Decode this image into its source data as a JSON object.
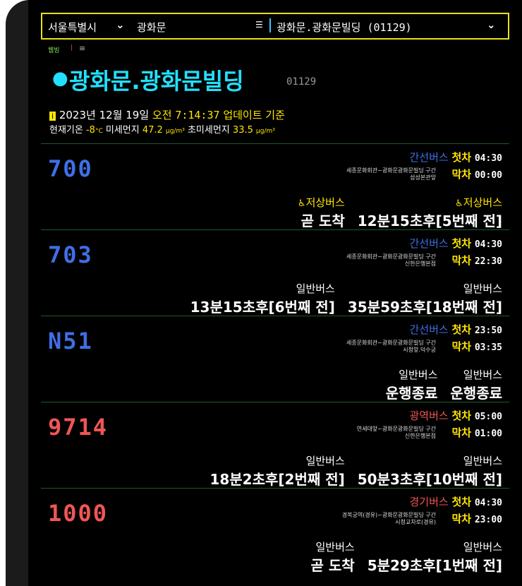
{
  "header": {
    "city": "서울특별시",
    "district": "광화문",
    "stop_select": "광화문.광화문빌딩 (01129)"
  },
  "nav": {
    "logo": "웹빙",
    "menu": "≡"
  },
  "stop": {
    "name": "광화문.광화문빌딩",
    "id": "01129"
  },
  "update": {
    "date": "2023년 12월 19일",
    "ampm": "오전",
    "time": "7:14:37",
    "suffix": "업데이트 기준"
  },
  "weather": {
    "temp_label": "현재기온",
    "temp": "-8",
    "temp_unit": "°C",
    "pm10_label": "미세먼지",
    "pm10": "47.2",
    "pm10_unit": "µg/m³",
    "pm25_label": "초미세먼지",
    "pm25": "33.5",
    "pm25_unit": "µg/m³"
  },
  "routes": [
    {
      "number": "700",
      "color": "#3f6fe6",
      "type": "간선버스",
      "first_label": "첫차",
      "first": "04:30",
      "last_label": "막차",
      "last": "00:00",
      "direction": "세종문화회관~광화문광화문빌딩 구간",
      "next_stop": "삼성본관앞",
      "arrivals": [
        {
          "bus_type": "저상버스",
          "text": "곧 도착"
        },
        {
          "bus_type": "저상버스",
          "text": "12분15초후[5번째 전]"
        }
      ]
    },
    {
      "number": "703",
      "color": "#3f6fe6",
      "type": "간선버스",
      "first_label": "첫차",
      "first": "04:30",
      "last_label": "막차",
      "last": "22:30",
      "direction": "세종문화회관~광화문광화문빌딩 구간",
      "next_stop": "신한은행본점",
      "arrivals": [
        {
          "bus_type": "일반버스",
          "text": "13분15초후[6번째 전]"
        },
        {
          "bus_type": "일반버스",
          "text": "35분59초후[18번째 전]"
        }
      ]
    },
    {
      "number": "N51",
      "color": "#3f6fe6",
      "type": "간선버스",
      "first_label": "첫차",
      "first": "23:50",
      "last_label": "막차",
      "last": "03:35",
      "direction": "세종문화회관~광화문광화문빌딩 구간",
      "next_stop": "시청앞.덕수궁",
      "arrivals": [
        {
          "bus_type": "일반버스",
          "text": "운행종료"
        },
        {
          "bus_type": "일반버스",
          "text": "운행종료"
        }
      ]
    },
    {
      "number": "9714",
      "color": "#f05555",
      "type": "광역버스",
      "first_label": "첫차",
      "first": "05:00",
      "last_label": "막차",
      "last": "01:00",
      "direction": "연세대앞~광화문광화문빌딩 구간",
      "next_stop": "신한은행본점",
      "arrivals": [
        {
          "bus_type": "일반버스",
          "text": "18분2초후[2번째 전]"
        },
        {
          "bus_type": "일반버스",
          "text": "50분3초후[10번째 전]"
        }
      ]
    },
    {
      "number": "1000",
      "color": "#f05555",
      "type": "경기버스",
      "first_label": "첫차",
      "first": "04:30",
      "last_label": "막차",
      "last": "23:00",
      "direction": "경복궁역(경유)~광화문광화문빌딩 구간",
      "next_stop": "시청교차로(경유)",
      "arrivals": [
        {
          "bus_type": "일반버스",
          "text": "곧 도착"
        },
        {
          "bus_type": "일반버스",
          "text": "5분29초후[1번째 전]"
        }
      ]
    }
  ]
}
